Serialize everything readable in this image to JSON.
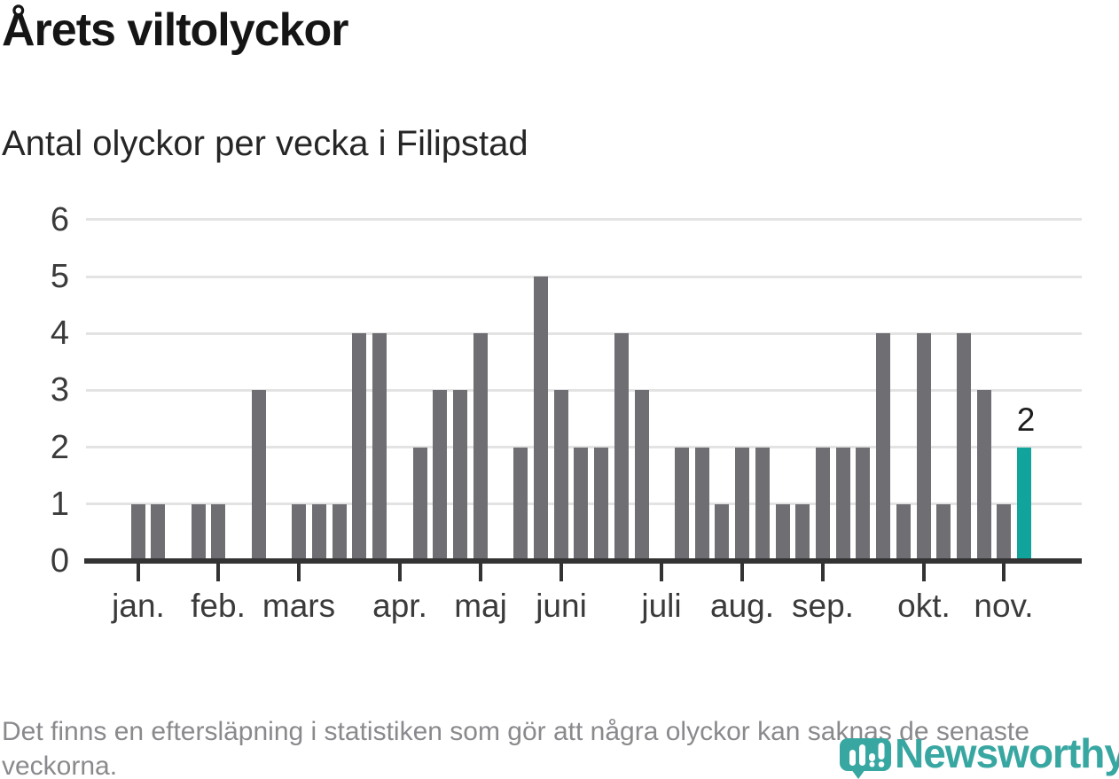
{
  "header": {
    "title": "Årets viltolyckor",
    "subtitle": "Antal olyckor per vecka i Filipstad"
  },
  "chart_data": {
    "type": "bar",
    "title": "Årets viltolyckor",
    "subtitle": "Antal olyckor per vecka i Filipstad",
    "x_unit": "vecka",
    "ylim": [
      0,
      6
    ],
    "y_ticks": [
      0,
      1,
      2,
      3,
      4,
      5,
      6
    ],
    "grid": true,
    "values": [
      1,
      1,
      0,
      1,
      1,
      0,
      3,
      0,
      1,
      1,
      1,
      4,
      4,
      0,
      2,
      3,
      3,
      4,
      0,
      2,
      5,
      3,
      2,
      2,
      4,
      3,
      0,
      2,
      2,
      1,
      2,
      2,
      1,
      1,
      2,
      2,
      2,
      4,
      1,
      4,
      1,
      4,
      3,
      1,
      2
    ],
    "months": [
      {
        "label": "jan.",
        "week": 0
      },
      {
        "label": "feb.",
        "week": 4
      },
      {
        "label": "mars",
        "week": 8
      },
      {
        "label": "apr.",
        "week": 13
      },
      {
        "label": "maj",
        "week": 17
      },
      {
        "label": "juni",
        "week": 21
      },
      {
        "label": "juli",
        "week": 26
      },
      {
        "label": "aug.",
        "week": 30
      },
      {
        "label": "sep.",
        "week": 34
      },
      {
        "label": "okt.",
        "week": 39
      },
      {
        "label": "nov.",
        "week": 43
      }
    ],
    "highlight_last_bar": true,
    "last_bar_label": "2",
    "legend_position": "none"
  },
  "footer": {
    "note": "Det finns en eftersläpning i statistiken som gör att några olyckor kan saknas de senaste veckorna.",
    "brand": "Newsworthy"
  },
  "colors": {
    "bar": "#6e6e73",
    "highlight": "#10a49c",
    "grid": "#e3e3e3",
    "axis": "#333333",
    "tick_label": "#3b3b3b",
    "note": "#8a8a8e",
    "brand": "#38a7a2"
  }
}
